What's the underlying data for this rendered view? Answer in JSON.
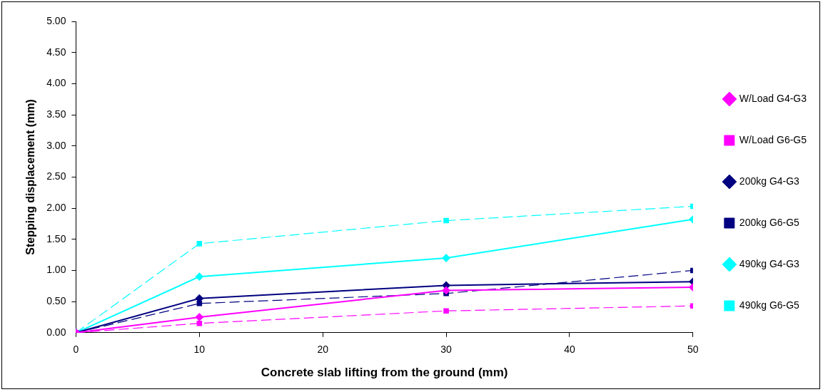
{
  "chart_data": {
    "type": "line",
    "xlabel": "Concrete slab lifting from the ground (mm)",
    "ylabel": "Stepping displacement (mm)",
    "x": [
      0,
      10,
      30,
      50
    ],
    "series": [
      {
        "name": "W/Load G4-G3",
        "color": "#ff00ff",
        "marker": "diamond",
        "line_style": "solid",
        "values": [
          0,
          0.25,
          0.68,
          0.73
        ]
      },
      {
        "name": "W/Load G6-G5",
        "color": "#ff00ff",
        "marker": "square",
        "line_style": "dashed",
        "values": [
          0,
          0.15,
          0.35,
          0.43
        ]
      },
      {
        "name": "200kg G4-G3",
        "color": "#000080",
        "marker": "diamond",
        "line_style": "solid",
        "values": [
          0,
          0.55,
          0.76,
          0.82
        ]
      },
      {
        "name": "200kg G6-G5",
        "color": "#000080",
        "marker": "square",
        "line_style": "dashed",
        "values": [
          0,
          0.47,
          0.63,
          1.0
        ]
      },
      {
        "name": "490kg G4-G3",
        "color": "#00ffff",
        "marker": "diamond",
        "line_style": "solid",
        "values": [
          0,
          0.9,
          1.2,
          1.82
        ]
      },
      {
        "name": "490kg G6-G5",
        "color": "#00ffff",
        "marker": "square",
        "line_style": "dashed",
        "values": [
          0,
          1.43,
          1.8,
          2.03
        ]
      }
    ],
    "xlim": [
      0,
      50
    ],
    "xticks": [
      0,
      10,
      20,
      30,
      40,
      50
    ],
    "ylim": [
      0,
      5
    ],
    "yticks": [
      {
        "value": 0,
        "label": "0.00"
      },
      {
        "value": 0.5,
        "label": "0.50"
      },
      {
        "value": 1,
        "label": "1.00"
      },
      {
        "value": 1.5,
        "label": "1.50"
      },
      {
        "value": 2,
        "label": "2.00"
      },
      {
        "value": 2.5,
        "label": "2.50"
      },
      {
        "value": 3,
        "label": "3.00"
      },
      {
        "value": 3.5,
        "label": "3.50"
      },
      {
        "value": 4,
        "label": "4.00"
      },
      {
        "value": 4.5,
        "label": "4.50"
      },
      {
        "value": 5,
        "label": "5.00"
      }
    ],
    "grid": false,
    "legend": "right"
  }
}
